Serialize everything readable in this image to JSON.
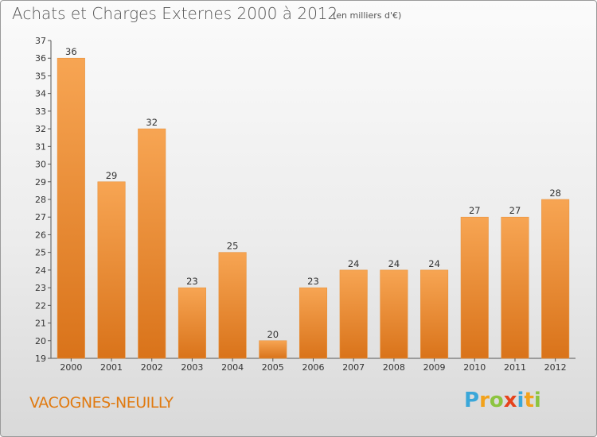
{
  "header": {
    "title": "Achats et Charges Externes 2000 à 2012",
    "subtitle": "(en milliers d'€)"
  },
  "footer": {
    "place": "VACOGNES-NEUILLY",
    "logo": {
      "text": "Proxiti",
      "letters": [
        {
          "ch": "P",
          "color": "#3aa7d9"
        },
        {
          "ch": "r",
          "color": "#f2a21b"
        },
        {
          "ch": "o",
          "color": "#8cc43f"
        },
        {
          "ch": "x",
          "color": "#e6431c"
        },
        {
          "ch": "i",
          "color": "#3aa7d9"
        },
        {
          "ch": "t",
          "color": "#f2a21b"
        },
        {
          "ch": "i",
          "color": "#8cc43f"
        }
      ]
    }
  },
  "colors": {
    "bar_light": "#f7a553",
    "bar_dark": "#d9731a",
    "place": "#e07a10"
  },
  "chart_data": {
    "type": "bar",
    "title": "Achats et Charges Externes 2000 à 2012",
    "subtitle": "(en milliers d'€)",
    "categories": [
      "2000",
      "2001",
      "2002",
      "2003",
      "2004",
      "2005",
      "2006",
      "2007",
      "2008",
      "2009",
      "2010",
      "2011",
      "2012"
    ],
    "values": [
      36,
      29,
      32,
      23,
      25,
      20,
      23,
      24,
      24,
      24,
      27,
      27,
      28
    ],
    "ylim": [
      19,
      37
    ],
    "yticks": [
      19,
      20,
      21,
      22,
      23,
      24,
      25,
      26,
      27,
      28,
      29,
      30,
      31,
      32,
      33,
      34,
      35,
      36,
      37
    ],
    "grid": false,
    "xlabel": "",
    "ylabel": ""
  }
}
